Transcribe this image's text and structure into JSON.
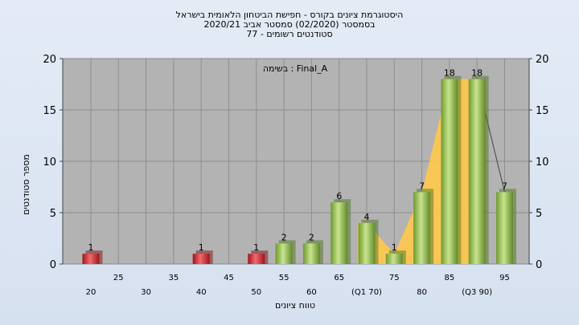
{
  "header": {
    "line1": "היסטוגרמת ציונים בקורס - חפישת הביטחון הלאומית בישראל",
    "line2": "בסמסטר  (02/2020)  סמסטר אביב 2020/21",
    "line3": "סטודנטים רשומים - 77"
  },
  "chart_data": {
    "type": "bar",
    "xlabel": "טווח ציונים",
    "ylabel": "מספר סטודנטים",
    "ylim": [
      0,
      20
    ],
    "y_ticks": [
      0,
      5,
      10,
      15,
      20
    ],
    "annotation": "בשימה : Final_A",
    "grid": true,
    "x_tick_labels_lower": [
      "20",
      "30",
      "40",
      "50",
      "60",
      "(Q1 70)",
      "80",
      "(Q3 90)"
    ],
    "x_tick_labels_upper": [
      "25",
      "35",
      "45",
      "55",
      "65",
      "75",
      "85",
      "95"
    ],
    "bins": [
      20,
      25,
      30,
      35,
      40,
      45,
      50,
      55,
      60,
      65,
      70,
      75,
      80,
      85,
      90,
      95
    ],
    "series": [
      {
        "values": [
          1,
          0,
          0,
          0,
          1,
          0,
          1,
          2,
          2,
          6,
          4,
          1,
          7,
          18,
          18,
          7
        ],
        "colors": {
          "fail": "#d8242b",
          "pass": "#8cbd4a"
        }
      }
    ],
    "pass_threshold": 55,
    "area_color": "#ffc84a",
    "frame_color": "#aaaaaa"
  }
}
